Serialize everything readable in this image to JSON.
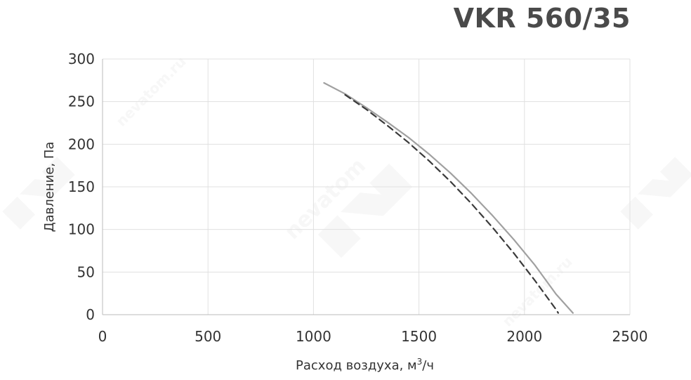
{
  "chart_data": {
    "type": "line",
    "title": "VKR 560/35",
    "xlabel": "Расход воздуха, м",
    "xlabel_sup": "3",
    "xlabel_tail": "/ч",
    "ylabel": "Давление, Па",
    "xlim": [
      0,
      2500
    ],
    "ylim": [
      0,
      300
    ],
    "xticks": [
      "0",
      "500",
      "1000",
      "1500",
      "2000",
      "2500"
    ],
    "yticks": [
      "0",
      "50",
      "100",
      "150",
      "200",
      "250",
      "300"
    ],
    "grid": true,
    "legend": "none",
    "colors": {
      "solid": "#a0a0a0",
      "dashed": "#3a3a3a",
      "grid": "#e0e0e0",
      "axis": "#bbbbbb",
      "text": "#333333"
    },
    "series": [
      {
        "style": "solid",
        "x": [
          1050,
          1150,
          1250,
          1350,
          1450,
          1550,
          1650,
          1750,
          1850,
          1950,
          2050,
          2150,
          2230
        ],
        "y": [
          272,
          259,
          243,
          226,
          208,
          188,
          166,
          142,
          116,
          88,
          58,
          24,
          2
        ]
      },
      {
        "style": "dashed",
        "x": [
          1150,
          1250,
          1350,
          1450,
          1550,
          1650,
          1750,
          1850,
          1950,
          2050,
          2150,
          2160
        ],
        "y": [
          258,
          241,
          222,
          202,
          180,
          156,
          130,
          102,
          72,
          40,
          6,
          2
        ]
      }
    ],
    "watermark": [
      "nevatom.ru",
      "nevatom"
    ]
  }
}
